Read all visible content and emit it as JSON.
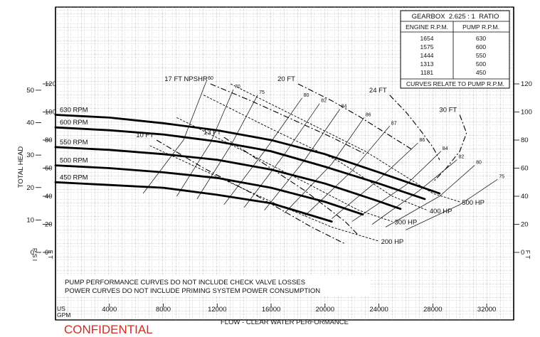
{
  "chart_data": {
    "type": "line",
    "title": "",
    "xlabel": "FLOW - CLEAR WATER PERFORMANCE",
    "x_unit_label": [
      "US",
      "GPM"
    ],
    "ylabel": "TOTAL HEAD",
    "psi_label": "P S I",
    "ft_label": "F T",
    "xlim": [
      0,
      34000
    ],
    "ylim_ft": [
      0,
      140
    ],
    "ylim_psi": [
      0,
      60
    ],
    "x_ticks": [
      {
        "value": 4000,
        "label": "4000"
      },
      {
        "value": 8000,
        "label": "8000"
      },
      {
        "value": 12000,
        "label": "12000"
      },
      {
        "value": 16000,
        "label": "16000"
      },
      {
        "value": 20000,
        "label": "20000"
      },
      {
        "value": 24000,
        "label": "24000"
      },
      {
        "value": 28000,
        "label": "28000"
      },
      {
        "value": 32000,
        "label": "32000"
      }
    ],
    "ft_ticks": [
      {
        "value": 0,
        "label": "0"
      },
      {
        "value": 20,
        "label": "20"
      },
      {
        "value": 40,
        "label": "40"
      },
      {
        "value": 60,
        "label": "60"
      },
      {
        "value": 80,
        "label": "80"
      },
      {
        "value": 100,
        "label": "100"
      },
      {
        "value": 120,
        "label": "120"
      }
    ],
    "psi_ticks": [
      {
        "value": 0,
        "label": "0"
      },
      {
        "value": 10,
        "label": "10"
      },
      {
        "value": 20,
        "label": "20"
      },
      {
        "value": 30,
        "label": "30"
      },
      {
        "value": 40,
        "label": "40"
      },
      {
        "value": 50,
        "label": "50"
      }
    ],
    "grid": true,
    "series": [
      {
        "name": "630 RPM",
        "kind": "head",
        "x": [
          0,
          4000,
          8000,
          12000,
          16000,
          20000,
          24000,
          27000,
          28500
        ],
        "y": [
          98,
          96,
          92,
          87,
          80,
          70,
          57,
          47,
          42
        ]
      },
      {
        "name": "600 RPM",
        "kind": "head",
        "x": [
          0,
          4000,
          8000,
          12000,
          16000,
          20000,
          24000,
          27400
        ],
        "y": [
          89,
          87,
          84,
          79,
          72,
          61,
          49,
          38
        ]
      },
      {
        "name": "550 RPM",
        "kind": "head",
        "x": [
          0,
          4000,
          8000,
          12000,
          16000,
          20000,
          23800,
          25600
        ],
        "y": [
          75,
          73,
          70,
          66,
          59,
          49,
          37,
          31
        ]
      },
      {
        "name": "500 RPM",
        "kind": "head",
        "x": [
          0,
          4000,
          8000,
          12000,
          16000,
          20000,
          22800
        ],
        "y": [
          62,
          60,
          57,
          53,
          46,
          36,
          27
        ]
      },
      {
        "name": "450 RPM",
        "kind": "head",
        "x": [
          0,
          4000,
          8000,
          12000,
          16000,
          20500
        ],
        "y": [
          50,
          48,
          46,
          41,
          35,
          22
        ]
      },
      {
        "name": "500 HP",
        "kind": "power",
        "x": [
          13000,
          18000,
          23000,
          28000,
          30000
        ],
        "y": [
          120,
          96,
          72,
          42,
          36
        ]
      },
      {
        "name": "400 HP",
        "kind": "power",
        "x": [
          11000,
          16000,
          21000,
          25000,
          27600
        ],
        "y": [
          112,
          88,
          65,
          40,
          30
        ]
      },
      {
        "name": "300 HP",
        "kind": "power",
        "x": [
          9000,
          14000,
          18500,
          22500,
          25000
        ],
        "y": [
          96,
          72,
          50,
          30,
          22
        ]
      },
      {
        "name": "200 HP",
        "kind": "power",
        "x": [
          7000,
          12000,
          16500,
          20500,
          24000
        ],
        "y": [
          76,
          54,
          34,
          18,
          8
        ]
      },
      {
        "name": "17 FT NPSHR",
        "kind": "npshr",
        "x": [
          11500,
          14500,
          17500,
          20500,
          23000
        ],
        "y": [
          120,
          108,
          95,
          82,
          70
        ]
      },
      {
        "name": "20 FT",
        "kind": "npshr",
        "x": [
          18000,
          20500,
          22500,
          24500,
          26500
        ],
        "y": [
          120,
          108,
          97,
          85,
          73
        ]
      },
      {
        "name": "24 FT",
        "kind": "npshr",
        "x": [
          24800,
          26000,
          27000,
          28000,
          28500
        ],
        "y": [
          112,
          100,
          88,
          75,
          66
        ]
      },
      {
        "name": "30 FT",
        "kind": "npshr",
        "x": [
          30000,
          30500,
          30000,
          29000,
          28000
        ],
        "y": [
          98,
          85,
          72,
          60,
          50
        ]
      },
      {
        "name": "10 FT",
        "kind": "npshr",
        "x": [
          7500,
          11000,
          15000,
          19000,
          21500
        ],
        "y": [
          80,
          60,
          40,
          18,
          6
        ]
      },
      {
        "name": "13 FT",
        "kind": "npshr",
        "x": [
          12500,
          15500,
          18500,
          21500,
          22500
        ],
        "y": [
          82,
          63,
          44,
          22,
          12
        ]
      }
    ],
    "efficiency": [
      {
        "label": "60",
        "x": [
          6500,
          9500,
          11200
        ],
        "y": [
          42,
          80,
          122
        ]
      },
      {
        "label": "70",
        "x": [
          9000,
          11500,
          13200
        ],
        "y": [
          40,
          78,
          116
        ]
      },
      {
        "label": "75",
        "x": [
          10500,
          13000,
          15000
        ],
        "y": [
          38,
          76,
          112
        ]
      },
      {
        "label": "80",
        "x": [
          12500,
          15500,
          18300
        ],
        "y": [
          34,
          72,
          110
        ]
      },
      {
        "label": "82",
        "x": [
          14000,
          17000,
          19600
        ],
        "y": [
          32,
          70,
          106
        ]
      },
      {
        "label": "84",
        "x": [
          15500,
          18500,
          21100
        ],
        "y": [
          30,
          66,
          102
        ]
      },
      {
        "label": "86",
        "x": [
          17000,
          20500,
          22900
        ],
        "y": [
          28,
          63,
          96
        ]
      },
      {
        "label": "87",
        "x": [
          18500,
          22000,
          24800
        ],
        "y": [
          26,
          58,
          90
        ]
      },
      {
        "label": "86",
        "x": [
          20500,
          24000,
          26900
        ],
        "y": [
          24,
          52,
          78
        ]
      },
      {
        "label": "84",
        "x": [
          22000,
          26000,
          28600
        ],
        "y": [
          22,
          48,
          72
        ]
      },
      {
        "label": "82",
        "x": [
          23500,
          27000,
          29800
        ],
        "y": [
          20,
          44,
          66
        ]
      },
      {
        "label": "80",
        "x": [
          24500,
          28500,
          31100
        ],
        "y": [
          18,
          40,
          62
        ]
      },
      {
        "label": "75",
        "x": [
          26000,
          30000,
          32800
        ],
        "y": [
          16,
          34,
          52
        ]
      }
    ],
    "table": {
      "title": "GEARBOX  2.625 : 1  RATIO",
      "headers": [
        "ENGINE R.P.M.",
        "PUMP R.P.M."
      ],
      "rows": [
        [
          "1654",
          "630"
        ],
        [
          "1575",
          "600"
        ],
        [
          "1444",
          "550"
        ],
        [
          "1313",
          "500"
        ],
        [
          "1181",
          "450"
        ]
      ],
      "note": "CURVES RELATE TO PUMP R.P.M."
    },
    "notes": [
      "PUMP PERFORMANCE CURVES DO NOT INCLUDE CHECK VALVE LOSSES",
      "POWER CURVES DO NOT INCLUDE PRIMING SYSTEM POWER CONSUMPTION"
    ],
    "stamp": "CONFIDENTIAL"
  }
}
